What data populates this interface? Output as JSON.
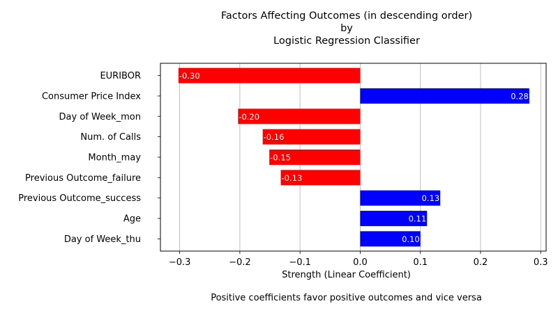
{
  "chart_data": {
    "type": "bar",
    "orientation": "horizontal",
    "title_lines": [
      "Factors Affecting Outcomes (in descending order)",
      "by",
      "Logistic Regression Classifier"
    ],
    "xlabel": "Strength (Linear Coefficient)",
    "caption": "Positive coefficients favor positive outcomes and vice versa",
    "categories": [
      "EURIBOR",
      "Consumer Price Index",
      "Day of Week_mon",
      "Num. of Calls",
      "Month_may",
      "Previous Outcome_failure",
      "Previous Outcome_success",
      "Age",
      "Day of Week_thu"
    ],
    "values": [
      -0.302,
      0.281,
      -0.203,
      -0.162,
      -0.151,
      -0.132,
      0.133,
      0.111,
      0.1
    ],
    "data_labels": [
      "-0.30",
      "0.28",
      "-0.20",
      "-0.16",
      "-0.15",
      "-0.13",
      "0.13",
      "0.11",
      "0.10"
    ],
    "xlim": [
      -0.332,
      0.309
    ],
    "xticks": [
      -0.3,
      -0.2,
      -0.1,
      0.0,
      0.1,
      0.2,
      0.3
    ],
    "xtick_labels": [
      "−0.3",
      "−0.2",
      "−0.1",
      "0.0",
      "0.1",
      "0.2",
      "0.3"
    ],
    "grid": "x",
    "colors": {
      "positive": "#0000ff",
      "negative": "#ff0000"
    }
  }
}
